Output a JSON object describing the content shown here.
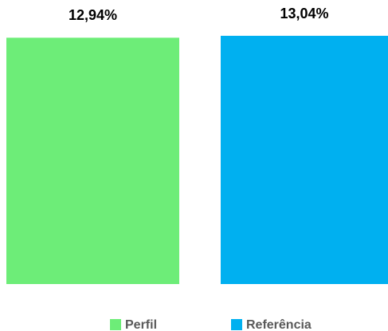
{
  "chart_data": {
    "type": "bar",
    "series": [
      {
        "name": "Perfil",
        "color": "#6ded78",
        "values": [
          12.94
        ],
        "value_labels": [
          "12,94%"
        ]
      },
      {
        "name": "Referência",
        "color": "#00b0f0",
        "values": [
          13.04
        ],
        "value_labels": [
          "13,04%"
        ]
      }
    ]
  }
}
